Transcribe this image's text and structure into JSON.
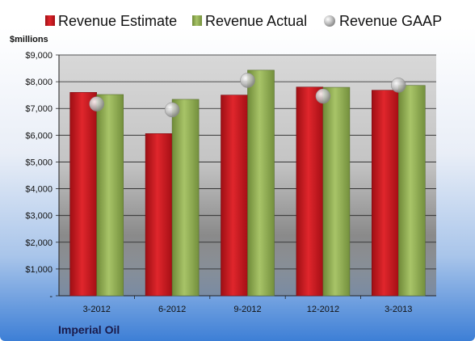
{
  "chart_data": {
    "type": "bar",
    "unit_label": "$millions",
    "company": "Imperial Oil",
    "categories": [
      "3-2012",
      "6-2012",
      "9-2012",
      "12-2012",
      "3-2013"
    ],
    "y_ticks": [
      "-",
      "$1,000",
      "$2,000",
      "$3,000",
      "$4,000",
      "$5,000",
      "$6,000",
      "$7,000",
      "$8,000",
      "$9,000"
    ],
    "ylim": [
      0,
      9000
    ],
    "grid": true,
    "legend_position": "top",
    "series": [
      {
        "name": "Revenue Estimate",
        "type": "bar",
        "color": "#c8141b",
        "values": [
          7600,
          6060,
          7500,
          7800,
          7680
        ]
      },
      {
        "name": "Revenue Actual",
        "type": "bar",
        "color": "#8fae4e",
        "values": [
          7520,
          7340,
          8430,
          7790,
          7860
        ]
      },
      {
        "name": "Revenue GAAP",
        "type": "marker",
        "color": "#b8b8b8",
        "values": [
          7170,
          6950,
          8050,
          7460,
          7870
        ]
      }
    ]
  }
}
